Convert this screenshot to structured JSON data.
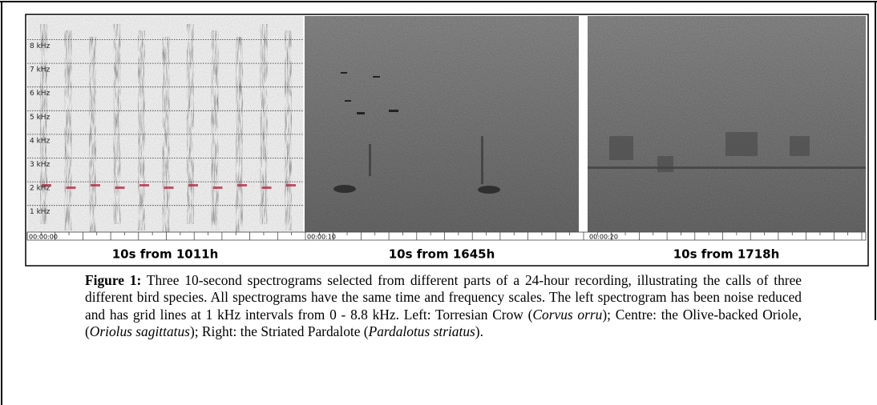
{
  "figure": {
    "frequency_labels": [
      "8 kHz",
      "7 kHz",
      "6 kHz",
      "5 kHz",
      "4 kHz",
      "3 kHz",
      "2 kHz",
      "1 kHz"
    ],
    "time_labels": [
      "00:00:00",
      "00:00:10",
      "00:00:20"
    ],
    "panel_labels": [
      "10s from 1011h",
      "10s from 1645h",
      "10s from 1718h"
    ]
  },
  "caption": {
    "label": "Figure 1:",
    "parts": [
      " Three 10-second spectrograms selected from different parts of a 24-hour recording, illustrating the calls of three different bird species. All spectrograms have the same time and frequency scales. The left spectrogram has been noise reduced and has grid lines at 1 kHz intervals from 0 - 8.8 kHz. Left: Torresian Crow (",
      "Corvus orru",
      "); Centre: the Olive-backed Oriole, (",
      "Oriolus sagittatus",
      "); Right: the Striated Pardalote (",
      "Pardalotus striatus",
      ")."
    ]
  }
}
